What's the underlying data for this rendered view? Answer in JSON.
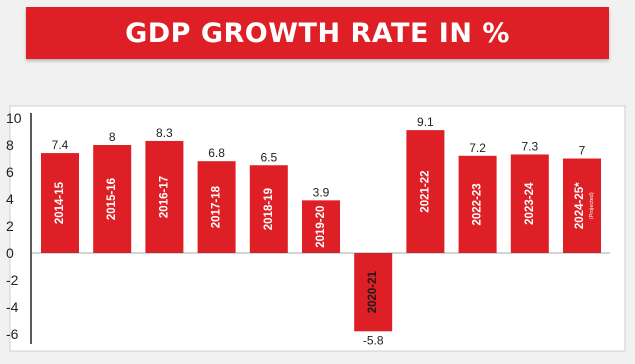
{
  "chart_data": {
    "type": "bar",
    "title": "GDP GROWTH RATE IN %",
    "categories": [
      "2014-15",
      "2015-16",
      "2016-17",
      "2017-18",
      "2018-19",
      "2019-20",
      "2020-21",
      "2021-22",
      "2022-23",
      "2023-24",
      "2024-25*"
    ],
    "category_notes": [
      "",
      "",
      "",
      "",
      "",
      "",
      "",
      "",
      "",
      "",
      "(Projected)"
    ],
    "values": [
      7.4,
      8,
      8.3,
      6.8,
      6.5,
      3.9,
      -5.8,
      9.1,
      7.2,
      7.3,
      7
    ],
    "value_labels": [
      "7.4",
      "8",
      "8.3",
      "6.8",
      "6.5",
      "3.9",
      "-5.8",
      "9.1",
      "7.2",
      "7.3",
      "7"
    ],
    "ylim": [
      -6.5,
      10
    ],
    "yticks": [
      10,
      8,
      6,
      4,
      2,
      0,
      -2,
      -4,
      -6
    ],
    "xlabel": "",
    "ylabel": "",
    "grid": false,
    "colors": {
      "bar": "#de1f26",
      "banner": "#de1f26",
      "bar_text": "#ffffff",
      "axis": "#222222"
    }
  }
}
